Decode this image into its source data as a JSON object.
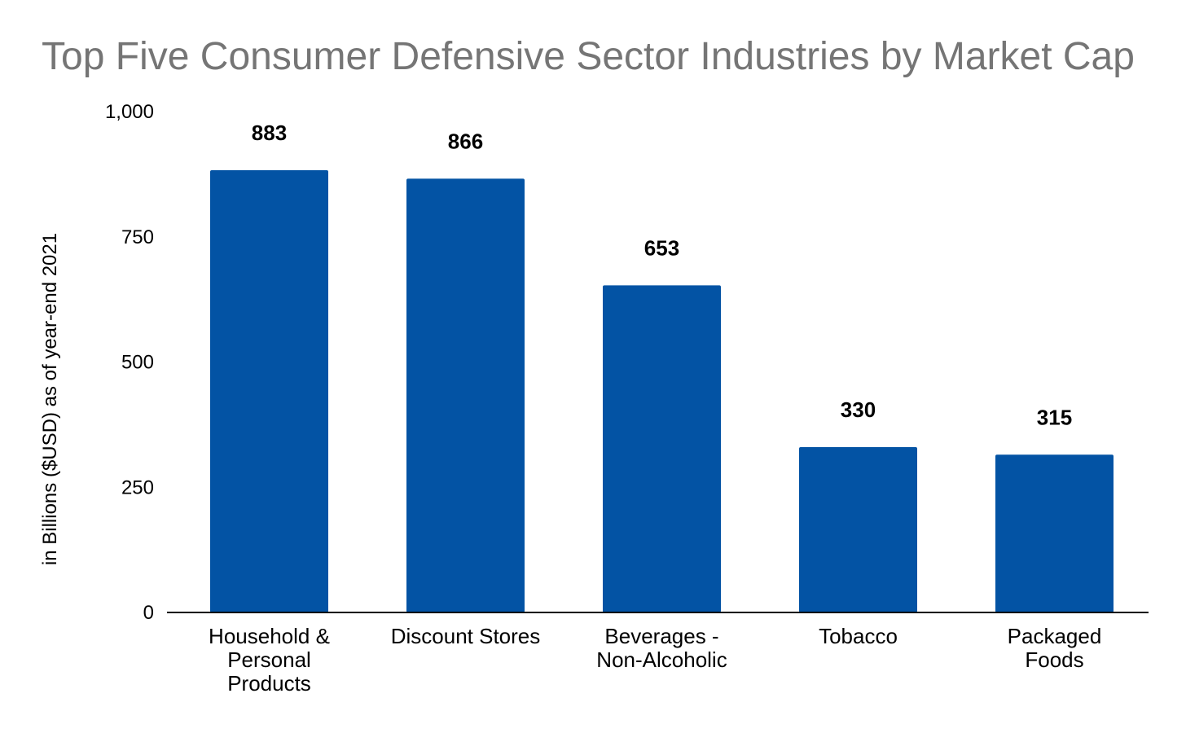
{
  "chart_data": {
    "type": "bar",
    "title": "Top Five Consumer Defensive Sector Industries by Market Cap",
    "xlabel": "",
    "ylabel": "in Billions ($USD) as of year-end 2021",
    "categories": [
      [
        "Household &",
        "Personal",
        "Products"
      ],
      [
        "Discount Stores"
      ],
      [
        "Beverages -",
        "Non-Alcoholic"
      ],
      [
        "Tobacco"
      ],
      [
        "Packaged",
        "Foods"
      ]
    ],
    "values": [
      883,
      866,
      653,
      330,
      315
    ],
    "data_labels": [
      "883",
      "866",
      "653",
      "330",
      "315"
    ],
    "y_ticks": [
      {
        "value": 0,
        "label": "0"
      },
      {
        "value": 250,
        "label": "250"
      },
      {
        "value": 500,
        "label": "500"
      },
      {
        "value": 750,
        "label": "750"
      },
      {
        "value": 1000,
        "label": "1,000"
      }
    ],
    "ylim": [
      0,
      1000
    ],
    "grid": false,
    "legend": "none",
    "colors": {
      "bar": "#0353a4",
      "title": "#757575",
      "text": "#000000",
      "axis": "#000000"
    }
  }
}
